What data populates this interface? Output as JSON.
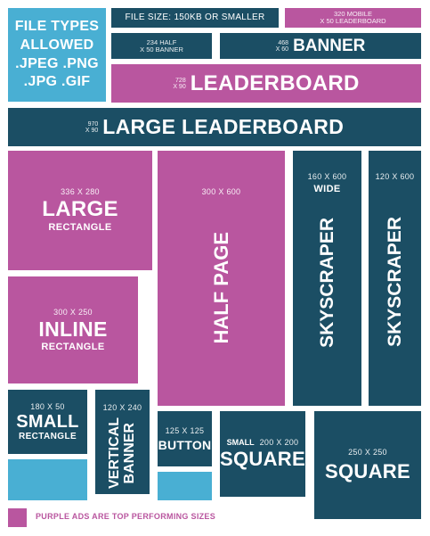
{
  "file_types": {
    "line1": "FILE TYPES",
    "line2": "ALLOWED",
    "line3": ".JPEG .PNG",
    "line4": ".JPG .GIF"
  },
  "file_size": "FILE SIZE: 150KB OR SMALLER",
  "mobile_leaderboard": {
    "line1": "320 MOBILE",
    "line2": "X 50 LEADERBOARD"
  },
  "half_banner": {
    "line1": "234 HALF",
    "line2": "X 50 BANNER"
  },
  "banner": {
    "dims1": "468",
    "dims2": "X 60",
    "name": "BANNER"
  },
  "leaderboard": {
    "dims1": "728",
    "dims2": "X 90",
    "name": "LEADERBOARD"
  },
  "large_leaderboard": {
    "dims1": "970",
    "dims2": "X 90",
    "name": "LARGE LEADERBOARD"
  },
  "large_rectangle": {
    "dims": "336 X 280",
    "name": "LARGE",
    "sub": "RECTANGLE"
  },
  "half_page": {
    "dims": "300 X 600",
    "name": "HALF PAGE"
  },
  "wide_skyscraper": {
    "dims": "160 X 600",
    "sub": "WIDE",
    "name": "SKYSCRAPER"
  },
  "skyscraper": {
    "dims": "120 X 600",
    "name": "SKYSCRAPER"
  },
  "inline_rectangle": {
    "dims": "300 X 250",
    "name": "INLINE",
    "sub": "RECTANGLE"
  },
  "small_rectangle": {
    "dims": "180 X 50",
    "name": "SMALL",
    "sub": "RECTANGLE"
  },
  "vertical_banner": {
    "dims": "120 X 240",
    "name1": "VERTICAL",
    "name2": "BANNER"
  },
  "button": {
    "dims": "125 X 125",
    "name": "BUTTON"
  },
  "small_square": {
    "prefix": "SMALL",
    "dims": "200 X 200",
    "name": "SQUARE"
  },
  "square": {
    "dims": "250 X 250",
    "name": "SQUARE"
  },
  "legend": "PURPLE ADS ARE TOP PERFORMING SIZES",
  "colors": {
    "navy": "#1b4e64",
    "purple": "#b9569f",
    "sky": "#49afd3"
  }
}
